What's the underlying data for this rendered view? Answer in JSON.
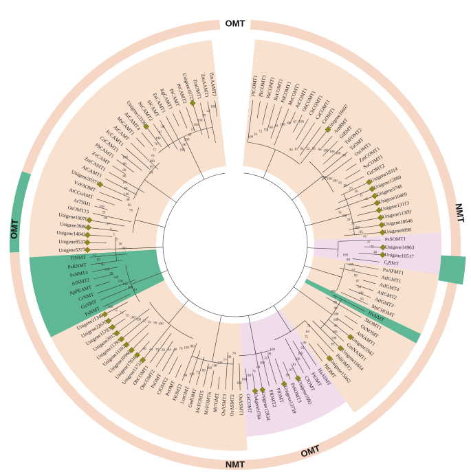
{
  "ring_labels": [
    {
      "text": "OMT",
      "angle": 90
    },
    {
      "text": "OMT",
      "angle": -70
    },
    {
      "text": "OMT",
      "angle": 176
    },
    {
      "text": "NMT",
      "angle": 270
    },
    {
      "text": "NMT",
      "angle": 8
    }
  ],
  "colors": {
    "omt_fill": "#f9e1d0",
    "pink_fill": "#f1dceb",
    "nmt_fill": "#5eb896",
    "outer_ring": "#f6d6c4",
    "marker": "#8a8a1c"
  },
  "marker_shape": "diamond",
  "leaves": [
    "PtCOMT1",
    "PkCOMT3",
    "PkCOMT1",
    "RcCOMT1",
    "PdCOMT1",
    "MsCOMT1",
    "AtCOMT1",
    "ObCOMT1",
    "ChCOMT1",
    "CaCOMT1",
    "CrOMT1",
    "Unigene16697",
    "AmBMT",
    "GtBMT",
    "TaFOMT2",
    "TaOMT",
    "OsOMT1",
    "ZmCOMT1",
    "SoCOMT1",
    "GsOMT2",
    "Unigene18314",
    "Unigene12890",
    "Unigene5748",
    "Unigene10409",
    "Unigene13113",
    "Unigene11309",
    "Unigene18646",
    "Unigene8898",
    "PsSOMT1",
    "Unigene14963",
    "Unigene10517",
    "CjSMT",
    "PaAFMT1",
    "AtIGMT1",
    "AtIGMT4",
    "AtIGMT2",
    "AtIGMT3",
    "MsCHOMT",
    "HvNMT",
    "SbOMT1",
    "OsNOMT",
    "AtNAMT1",
    "Unigene5942",
    "GmNAMT1",
    "Unigene11614",
    "PsSOMT2",
    "Unigene15463",
    "HIOMT",
    "HaASMT",
    "FtOMT",
    "CfOMT",
    "Unigene1092",
    "PsSOMT3",
    "Unigene13739",
    "PlOMT",
    "PlOMT2",
    "Unigene12834",
    "Unigene9784",
    "CrCOMT",
    "OsASMT1",
    "OsASMT2",
    "OsASMT3",
    "Mt7OMT",
    "McFOMT6",
    "McFOMT5",
    "GedOMT",
    "LmOMT",
    "FtOMT2",
    "PcOMT",
    "CfOMT2",
    "PsOMT",
    "ObCOMT2",
    "ObCOMT1",
    "Unigene11722",
    "Unigene17616",
    "Unigene10966",
    "Unigene11102",
    "Unigene11393",
    "Unigene3913",
    "Unigene15783",
    "Unigene22676",
    "Unigene21346",
    "PsNMT",
    "GsNMT",
    "CrNMT",
    "ApPEAMT",
    "AtNMT2",
    "PsNMT4",
    "PsRNMT",
    "TfNMT",
    "Unigene5377",
    "Unigene8537",
    "Unigene14042",
    "Unigene3986",
    "Unigene10076",
    "OsOMT15",
    "AtTSM1",
    "AtCCoAMT",
    "VvFAOMT",
    "Unigene20373",
    "AtCAMT1",
    "ZmCAMT1",
    "ZvCAMT",
    "PhCAMT1",
    "CaCAMT1",
    "PcCAMT1",
    "AtCAMT",
    "MsCAMT1",
    "AtCAMT4",
    "Unigene13336",
    "NtCAMT2",
    "SlCAMT",
    "EsCAMT1",
    "EgCAMT1",
    "PtCAMT",
    "PtCAMT2",
    "Unigene10723",
    "ZmOMT1",
    "ZmAAMT1",
    "ZmAAMT3"
  ],
  "marked_leaves": [
    "Unigene16697",
    "Unigene18314",
    "Unigene12890",
    "Unigene5748",
    "Unigene10409",
    "Unigene13113",
    "Unigene11309",
    "Unigene18646",
    "Unigene8898",
    "Unigene14963",
    "Unigene10517",
    "Unigene5942",
    "Unigene11614",
    "Unigene15463",
    "Unigene1092",
    "Unigene13739",
    "Unigene12834",
    "Unigene9784",
    "Unigene11722",
    "Unigene17616",
    "Unigene10966",
    "Unigene11102",
    "Unigene11393",
    "Unigene3913",
    "Unigene15783",
    "Unigene22676",
    "Unigene21346",
    "Unigene5377",
    "Unigene8537",
    "Unigene14042",
    "Unigene3986",
    "Unigene10076",
    "Unigene20373",
    "Unigene13336",
    "Unigene10723"
  ],
  "bootstrap_values": [
    "100",
    "59",
    "73",
    "93",
    "68",
    "61",
    "100",
    "80",
    "97",
    "100",
    "94",
    "87",
    "81",
    "52",
    "95",
    "68",
    "100",
    "100",
    "100",
    "90",
    "100",
    "100",
    "100",
    "81",
    "96",
    "23",
    "36",
    "11",
    "45",
    "78",
    "100",
    "28",
    "51",
    "100",
    "93",
    "41",
    "22",
    "72",
    "48",
    "100",
    "88",
    "100",
    "67",
    "99",
    "87",
    "94",
    "100",
    "95",
    "100",
    "72",
    "99",
    "98",
    "100",
    "100",
    "46",
    "100",
    "100",
    "99",
    "74",
    "84",
    "75",
    "46",
    "61",
    "100",
    "100",
    "81",
    "97",
    "99",
    "100",
    "99",
    "25",
    "100",
    "68",
    "79",
    "99",
    "100",
    "100",
    "79",
    "99",
    "77",
    "100",
    "100",
    "100",
    "80",
    "73",
    "100",
    "99",
    "100",
    "100",
    "70",
    "40",
    "44",
    "29",
    "79",
    "44",
    "46",
    "100",
    "99",
    "61",
    "22",
    "100",
    "100",
    "55",
    "71",
    "15",
    "100",
    "99",
    "100",
    "100",
    "100",
    "100",
    "89",
    "100",
    "96",
    "99",
    "42",
    "100",
    "36",
    "21",
    "5",
    "6",
    "97",
    "99",
    "39",
    "100",
    "95",
    "90",
    "48",
    "100",
    "58",
    "89",
    "80",
    "66",
    "88",
    "100",
    "24",
    "99",
    "100",
    "61",
    "72",
    "78",
    "100",
    "47",
    "98",
    "100",
    "46",
    "100",
    "38",
    "15",
    "100",
    "100",
    "99",
    "42",
    "100"
  ]
}
